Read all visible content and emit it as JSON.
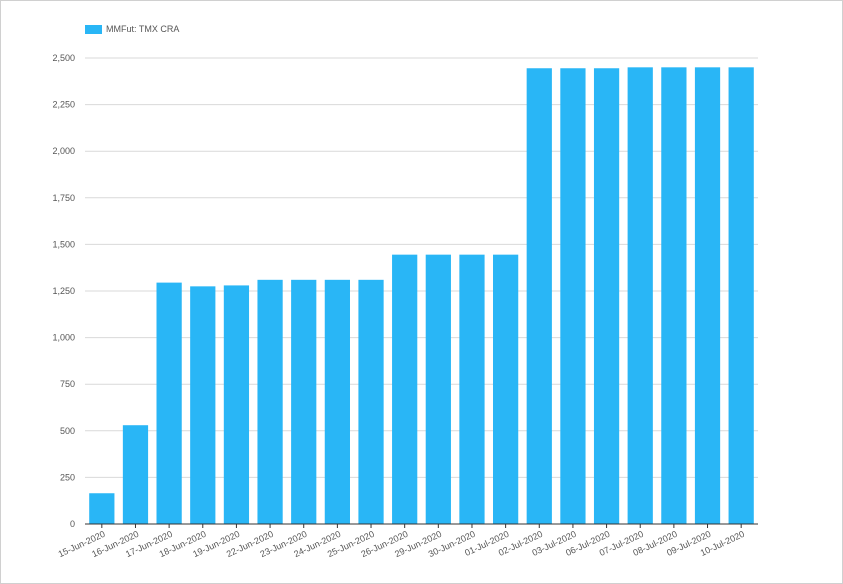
{
  "chart_data": {
    "type": "bar",
    "categories": [
      "15-Jun-2020",
      "16-Jun-2020",
      "17-Jun-2020",
      "18-Jun-2020",
      "19-Jun-2020",
      "22-Jun-2020",
      "23-Jun-2020",
      "24-Jun-2020",
      "25-Jun-2020",
      "26-Jun-2020",
      "29-Jun-2020",
      "30-Jun-2020",
      "01-Jul-2020",
      "02-Jul-2020",
      "03-Jul-2020",
      "06-Jul-2020",
      "07-Jul-2020",
      "08-Jul-2020",
      "09-Jul-2020",
      "10-Jul-2020"
    ],
    "series": [
      {
        "name": "MMFut: TMX CRA",
        "values": [
          165,
          530,
          1295,
          1275,
          1280,
          1310,
          1310,
          1310,
          1310,
          1445,
          1445,
          1445,
          1445,
          2445,
          2445,
          2445,
          2450,
          2450,
          2450,
          2450
        ]
      }
    ],
    "ylim": [
      0,
      2500
    ],
    "yticks": [
      "0",
      "250",
      "500",
      "750",
      "1,000",
      "1,250",
      "1,500",
      "1,750",
      "2,000",
      "2,250",
      "2,500"
    ],
    "ytick_values": [
      0,
      250,
      500,
      750,
      1000,
      1250,
      1500,
      1750,
      2000,
      2250,
      2500
    ],
    "grid": true,
    "legend_position": "top-left",
    "colors": {
      "bar": "#29b6f6",
      "grid": "#d9d9d9",
      "axis": "#333333"
    }
  }
}
